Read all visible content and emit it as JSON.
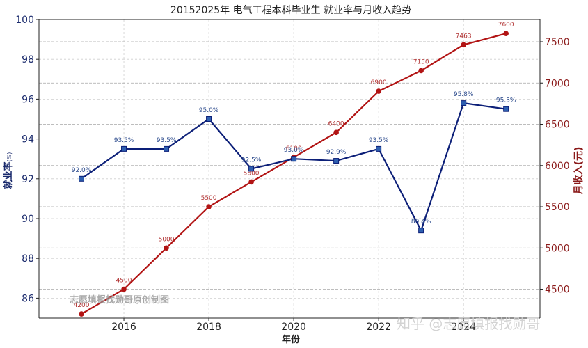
{
  "title": "20152025年  电气工程本科毕业生  就业率与月收入趋势",
  "xlabel": "年份",
  "ylabel_left": "就业率",
  "ylabel_left_unit": "(%)",
  "ylabel_right": "月收入(元)",
  "watermark_inner": "志愿填报找勋哥原创制图",
  "watermark_outer": "知乎 @志愿填报找勋哥",
  "colors": {
    "employment": "#0c1f78",
    "income": "#b21414"
  },
  "chart_data": {
    "type": "line",
    "x": [
      2015,
      2016,
      2017,
      2018,
      2019,
      2020,
      2021,
      2022,
      2023,
      2024,
      2025
    ],
    "x_ticks": [
      2016,
      2018,
      2020,
      2022,
      2024
    ],
    "xlim": [
      2014.0,
      2025.8
    ],
    "grid": true,
    "series": [
      {
        "axis": "left",
        "marker": "square",
        "values": [
          92.0,
          93.5,
          93.5,
          95.0,
          92.5,
          93.0,
          92.9,
          93.5,
          89.4,
          95.8,
          95.5
        ],
        "labels": [
          "92.0%",
          "93.5%",
          "93.5%",
          "95.0%",
          "92.5%",
          "93.0%",
          "92.9%",
          "93.5%",
          "89.4%",
          "95.8%",
          "95.5%"
        ]
      },
      {
        "axis": "right",
        "marker": "circle",
        "values": [
          4200,
          4500,
          5000,
          5500,
          5800,
          6100,
          6400,
          6900,
          7150,
          7463,
          7600
        ],
        "labels": [
          "4200",
          "4500",
          "5000",
          "5500",
          "5800",
          "6100",
          "6400",
          "6900",
          "7150",
          "7463",
          "7600"
        ]
      }
    ],
    "y_left": {
      "lim": [
        85.0,
        100
      ],
      "ticks": [
        86,
        88,
        90,
        92,
        94,
        96,
        98,
        100
      ]
    },
    "y_right": {
      "lim": [
        4150,
        7770
      ],
      "ticks": [
        4500,
        5000,
        5500,
        6000,
        6500,
        7000,
        7500
      ]
    }
  }
}
